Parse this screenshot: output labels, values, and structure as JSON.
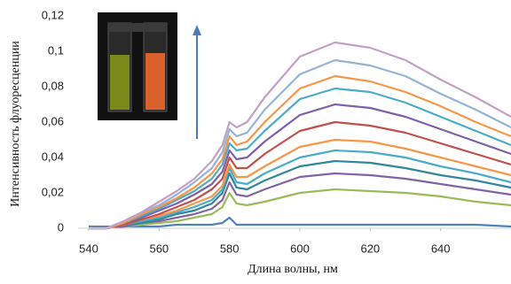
{
  "chart_data": {
    "type": "line",
    "xlabel": "Длина волны, нм",
    "ylabel": "Интенсивность флуоресценции",
    "x": [
      540,
      545,
      550,
      555,
      560,
      565,
      570,
      575,
      578,
      580,
      582,
      585,
      590,
      600,
      610,
      620,
      630,
      640,
      650,
      660
    ],
    "xlim": [
      540,
      660
    ],
    "xticks": [
      540,
      560,
      580,
      600,
      620,
      640
    ],
    "ylim": [
      0,
      0.12
    ],
    "yticks": [
      0,
      {
        "value": 0.02,
        "label": "0,02"
      },
      {
        "value": 0.04,
        "label": "0,04"
      },
      {
        "value": 0.06,
        "label": "0,06"
      },
      {
        "value": 0.08,
        "label": "0,08"
      },
      {
        "value": 0.1,
        "label": "0,1"
      },
      {
        "value": 0.12,
        "label": "0,12"
      }
    ],
    "series": [
      {
        "color": "#4f81bd",
        "values": [
          0.001,
          0.001,
          0.001,
          0.001,
          0.001,
          0.002,
          0.002,
          0.002,
          0.003,
          0.006,
          0.002,
          0.002,
          0.002,
          0.002,
          0.002,
          0.002,
          0.002,
          0.002,
          0.002,
          0.001
        ]
      },
      {
        "color": "#9bbb59",
        "values": [
          0,
          0,
          0.001,
          0.002,
          0.003,
          0.004,
          0.006,
          0.008,
          0.012,
          0.02,
          0.014,
          0.013,
          0.015,
          0.02,
          0.022,
          0.021,
          0.02,
          0.018,
          0.015,
          0.013
        ]
      },
      {
        "color": "#8064a2",
        "values": [
          0,
          0,
          0.001,
          0.003,
          0.004,
          0.006,
          0.008,
          0.011,
          0.016,
          0.026,
          0.019,
          0.018,
          0.022,
          0.029,
          0.031,
          0.03,
          0.028,
          0.025,
          0.022,
          0.019
        ]
      },
      {
        "color": "#31859c",
        "values": [
          0,
          0,
          0.002,
          0.003,
          0.005,
          0.008,
          0.01,
          0.014,
          0.02,
          0.031,
          0.023,
          0.022,
          0.027,
          0.035,
          0.038,
          0.037,
          0.034,
          0.03,
          0.027,
          0.023
        ]
      },
      {
        "color": "#4bacc6",
        "values": [
          0,
          0,
          0.002,
          0.004,
          0.006,
          0.009,
          0.012,
          0.016,
          0.022,
          0.034,
          0.026,
          0.025,
          0.031,
          0.04,
          0.044,
          0.043,
          0.04,
          0.035,
          0.031,
          0.026
        ]
      },
      {
        "color": "#f79646",
        "values": [
          0,
          0,
          0.002,
          0.005,
          0.007,
          0.01,
          0.014,
          0.018,
          0.024,
          0.036,
          0.029,
          0.029,
          0.035,
          0.046,
          0.05,
          0.049,
          0.045,
          0.04,
          0.035,
          0.03
        ]
      },
      {
        "color": "#c0504d",
        "values": [
          0,
          0,
          0.002,
          0.005,
          0.008,
          0.012,
          0.016,
          0.022,
          0.028,
          0.04,
          0.034,
          0.034,
          0.042,
          0.055,
          0.06,
          0.058,
          0.054,
          0.048,
          0.042,
          0.036
        ]
      },
      {
        "color": "#7f5fa8",
        "values": [
          0,
          0,
          0.003,
          0.006,
          0.01,
          0.014,
          0.019,
          0.025,
          0.032,
          0.044,
          0.039,
          0.04,
          0.049,
          0.064,
          0.07,
          0.068,
          0.063,
          0.056,
          0.049,
          0.042
        ]
      },
      {
        "color": "#4bacc6",
        "values": [
          0,
          0,
          0.003,
          0.007,
          0.011,
          0.016,
          0.021,
          0.028,
          0.036,
          0.048,
          0.044,
          0.045,
          0.055,
          0.073,
          0.079,
          0.077,
          0.071,
          0.063,
          0.055,
          0.047
        ]
      },
      {
        "color": "#f79646",
        "values": [
          0,
          0,
          0.003,
          0.008,
          0.012,
          0.017,
          0.023,
          0.031,
          0.039,
          0.052,
          0.047,
          0.049,
          0.06,
          0.079,
          0.086,
          0.083,
          0.077,
          0.069,
          0.06,
          0.052
        ]
      },
      {
        "color": "#95b3d7",
        "values": [
          0,
          0,
          0.004,
          0.009,
          0.013,
          0.019,
          0.026,
          0.034,
          0.043,
          0.056,
          0.052,
          0.054,
          0.067,
          0.087,
          0.095,
          0.092,
          0.086,
          0.076,
          0.067,
          0.057
        ]
      },
      {
        "color": "#c4a0c4",
        "values": [
          0,
          0,
          0.004,
          0.009,
          0.015,
          0.021,
          0.028,
          0.038,
          0.047,
          0.06,
          0.057,
          0.06,
          0.074,
          0.097,
          0.105,
          0.102,
          0.095,
          0.084,
          0.074,
          0.063
        ]
      }
    ]
  }
}
